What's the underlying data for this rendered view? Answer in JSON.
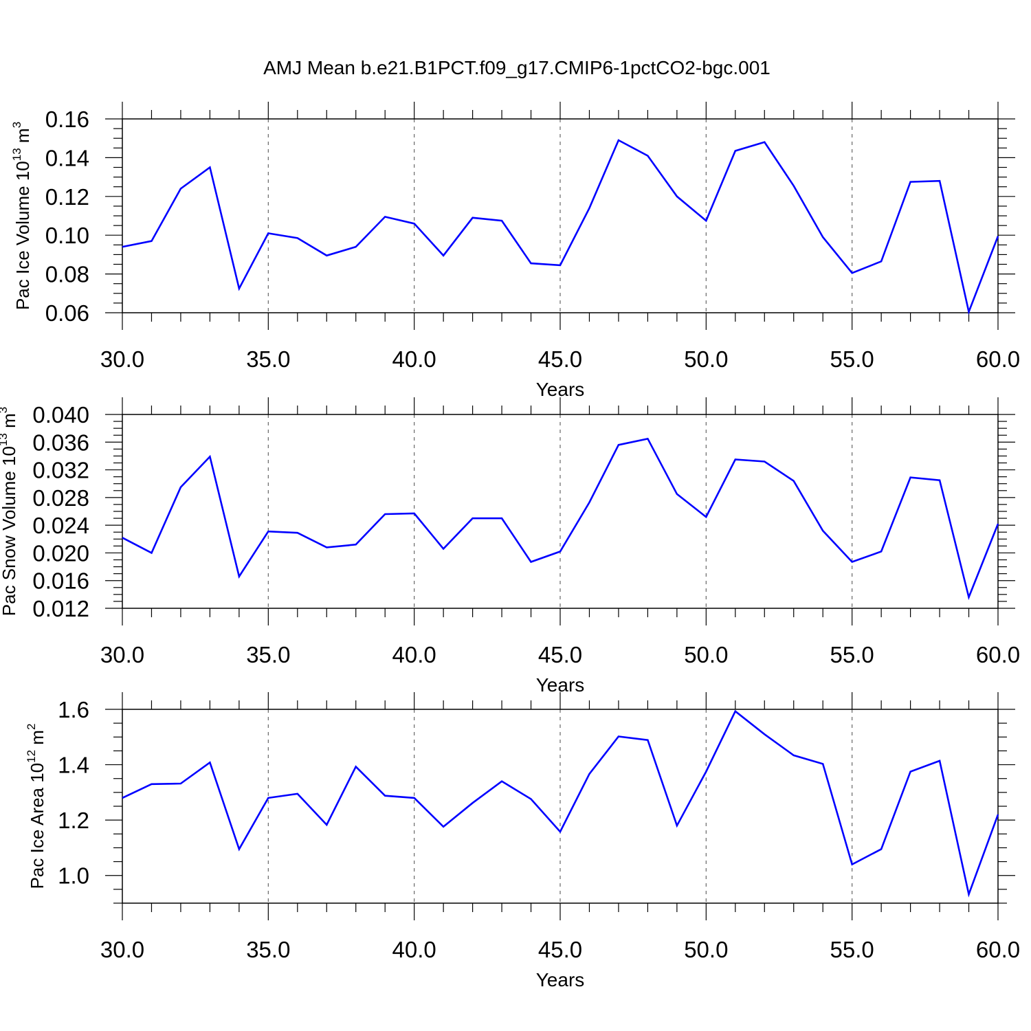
{
  "title": "AMJ Mean b.e21.B1PCT.f09_g17.CMIP6-1pctCO2-bgc.001",
  "colors": {
    "line": "#0000ff",
    "frame": "#000000",
    "grid": "#666666"
  },
  "chart_data": [
    {
      "type": "line",
      "ylabel": {
        "main": "Pac Ice Volume 10",
        "sup": "13",
        "mid": " m",
        "sup2": "3"
      },
      "xlabel": "Years",
      "xlim": [
        30,
        60
      ],
      "ylim": [
        0.06,
        0.16
      ],
      "x_ticks": [
        "30.0",
        "35.0",
        "40.0",
        "45.0",
        "50.0",
        "55.0",
        "60.0"
      ],
      "y_ticks": [
        "0.06",
        "0.08",
        "0.10",
        "0.12",
        "0.14",
        "0.16"
      ],
      "grid_x": [
        35,
        40,
        45,
        50,
        55
      ],
      "x": [
        30,
        31,
        32,
        33,
        34,
        35,
        36,
        37,
        38,
        39,
        40,
        41,
        42,
        43,
        44,
        45,
        46,
        47,
        48,
        49,
        50,
        51,
        52,
        53,
        54,
        55,
        56,
        57,
        58,
        59,
        60
      ],
      "values": [
        0.094,
        0.097,
        0.124,
        0.135,
        0.0725,
        0.101,
        0.0985,
        0.0895,
        0.094,
        0.1095,
        0.106,
        0.0895,
        0.109,
        0.1075,
        0.0855,
        0.0845,
        0.114,
        0.149,
        0.141,
        0.12,
        0.1075,
        0.1435,
        0.148,
        0.1255,
        0.099,
        0.0805,
        0.0865,
        0.1275,
        0.128,
        0.0605,
        0.0995
      ]
    },
    {
      "type": "line",
      "ylabel": {
        "main": "Pac Snow Volume 10",
        "sup": "13",
        "mid": " m",
        "sup2": "3"
      },
      "xlabel": "Years",
      "xlim": [
        30,
        60
      ],
      "ylim": [
        0.012,
        0.04
      ],
      "x_ticks": [
        "30.0",
        "35.0",
        "40.0",
        "45.0",
        "50.0",
        "55.0",
        "60.0"
      ],
      "y_ticks": [
        "0.012",
        "0.016",
        "0.020",
        "0.024",
        "0.028",
        "0.032",
        "0.036",
        "0.040"
      ],
      "grid_x": [
        35,
        40,
        45,
        50,
        55
      ],
      "x": [
        30,
        31,
        32,
        33,
        34,
        35,
        36,
        37,
        38,
        39,
        40,
        41,
        42,
        43,
        44,
        45,
        46,
        47,
        48,
        49,
        50,
        51,
        52,
        53,
        54,
        55,
        56,
        57,
        58,
        59,
        60
      ],
      "values": [
        0.0222,
        0.02,
        0.0295,
        0.0339,
        0.0166,
        0.0231,
        0.0229,
        0.0208,
        0.0212,
        0.0256,
        0.0257,
        0.0206,
        0.025,
        0.025,
        0.0187,
        0.0202,
        0.0273,
        0.0356,
        0.0365,
        0.0285,
        0.0252,
        0.0335,
        0.0332,
        0.0304,
        0.0232,
        0.0187,
        0.0202,
        0.0309,
        0.0305,
        0.0136,
        0.0242
      ]
    },
    {
      "type": "line",
      "ylabel": {
        "main": "Pac Ice Area 10",
        "sup": "12",
        "mid": " m",
        "sup2": "2"
      },
      "xlabel": "Years",
      "xlim": [
        30,
        60
      ],
      "ylim": [
        0.9,
        1.6
      ],
      "x_ticks": [
        "30.0",
        "35.0",
        "40.0",
        "45.0",
        "50.0",
        "55.0",
        "60.0"
      ],
      "y_ticks": [
        "1.0",
        "1.2",
        "1.4",
        "1.6"
      ],
      "y_tick_values": [
        1.0,
        1.2,
        1.4,
        1.6
      ],
      "grid_x": [
        35,
        40,
        45,
        50,
        55
      ],
      "x": [
        30,
        31,
        32,
        33,
        34,
        35,
        36,
        37,
        38,
        39,
        40,
        41,
        42,
        43,
        44,
        45,
        46,
        47,
        48,
        49,
        50,
        51,
        52,
        53,
        54,
        55,
        56,
        57,
        58,
        59,
        60
      ],
      "values": [
        1.28,
        1.33,
        1.332,
        1.408,
        1.095,
        1.28,
        1.295,
        1.183,
        1.393,
        1.288,
        1.28,
        1.176,
        1.262,
        1.34,
        1.276,
        1.158,
        1.367,
        1.502,
        1.489,
        1.18,
        1.375,
        1.593,
        1.51,
        1.434,
        1.403,
        1.04,
        1.095,
        1.375,
        1.414,
        0.932,
        1.22
      ]
    }
  ]
}
